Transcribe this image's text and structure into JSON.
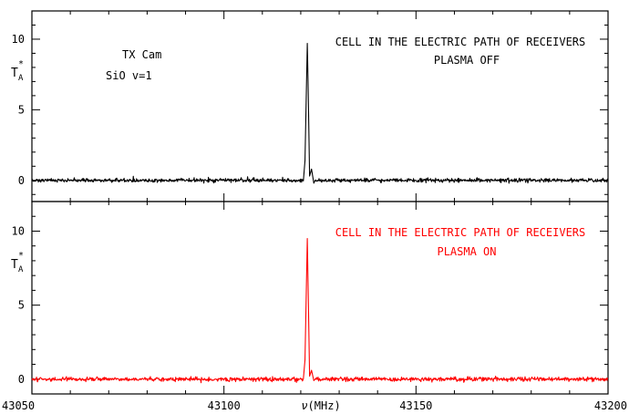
{
  "chart_data": [
    {
      "type": "line",
      "panel": "top",
      "ylabel_main": "T",
      "ylabel_sub": "A",
      "ylabel_sup": "*",
      "ylim": [
        -1.5,
        12.0
      ],
      "yticks": [
        0,
        5,
        10
      ],
      "xlim": [
        43050,
        43200
      ],
      "annotations_left": [
        "TX Cam",
        "SiO v=1"
      ],
      "annotations_right": [
        "CELL IN THE ELECTRIC PATH OF RECEIVERS",
        "PLASMA OFF"
      ],
      "series": [
        {
          "color": "#000000",
          "baseline": 0.0,
          "noise_rms": 0.07,
          "features": [
            {
              "x": 43121.1,
              "y": 1.4
            },
            {
              "x": 43121.7,
              "y": 9.7
            },
            {
              "x": 43121.9,
              "y": 7.0
            },
            {
              "x": 43122.3,
              "y": 0.3
            },
            {
              "x": 43122.8,
              "y": 0.8
            },
            {
              "x": 43123.4,
              "y": -0.2
            }
          ]
        }
      ]
    },
    {
      "type": "line",
      "panel": "bottom",
      "ylabel_main": "T",
      "ylabel_sub": "A",
      "ylabel_sup": "*",
      "ylim": [
        -1.0,
        12.0
      ],
      "yticks": [
        0,
        5,
        10
      ],
      "xlim": [
        43050,
        43200
      ],
      "xticks": [
        43050,
        43100,
        43150,
        43200
      ],
      "xlabel_nu": "ν",
      "xlabel": "(MHz)",
      "annotations_right": [
        "CELL IN THE ELECTRIC PATH OF RECEIVERS",
        "PLASMA ON"
      ],
      "series": [
        {
          "color": "#ff0000",
          "baseline": 0.0,
          "noise_rms": 0.07,
          "features": [
            {
              "x": 43121.1,
              "y": 1.3
            },
            {
              "x": 43121.7,
              "y": 9.5
            },
            {
              "x": 43121.9,
              "y": 6.5
            },
            {
              "x": 43122.3,
              "y": 0.2
            },
            {
              "x": 43122.8,
              "y": 0.6
            },
            {
              "x": 43123.4,
              "y": -0.1
            }
          ]
        }
      ]
    }
  ],
  "colors": {
    "frame": "#000000",
    "top_annotation": "#000000",
    "bottom_annotation": "#ff0000"
  }
}
